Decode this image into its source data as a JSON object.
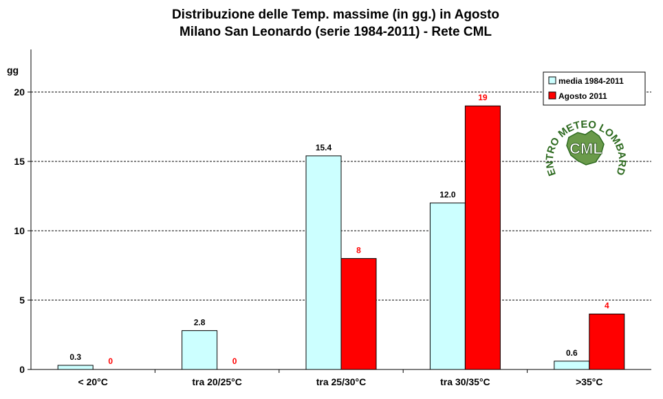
{
  "chart_data": {
    "type": "bar",
    "title": [
      "Distribuzione  delle  Temp.  massime  (in  gg.)  in  Agosto",
      "Milano  San  Leonardo  (serie  1984-2011)  - Rete  CML"
    ],
    "ylabel": "gg",
    "xlabel": "",
    "ylim": [
      0,
      20
    ],
    "yticks": [
      0,
      5,
      10,
      15,
      20
    ],
    "grid": true,
    "legend_position": "top-right",
    "categories": [
      "< 20°C",
      "tra 20/25°C",
      "tra 25/30°C",
      "tra 30/35°C",
      ">35°C"
    ],
    "series": [
      {
        "name": "media 1984-2011",
        "color": "#ccffff",
        "label_color": "#000000",
        "values": [
          0.3,
          2.8,
          15.4,
          12.0,
          0.6
        ],
        "labels": [
          "0.3",
          "2.8",
          "15.4",
          "12.0",
          "0.6"
        ]
      },
      {
        "name": "Agosto 2011",
        "color": "#ff0000",
        "label_color": "#ff0000",
        "values": [
          0,
          0,
          8,
          19,
          4
        ],
        "labels": [
          "0",
          "0",
          "8",
          "19",
          "4"
        ]
      }
    ]
  },
  "logo": {
    "arc_text": "CENTRO METEO LOMBARDO",
    "center_text": "CML"
  }
}
